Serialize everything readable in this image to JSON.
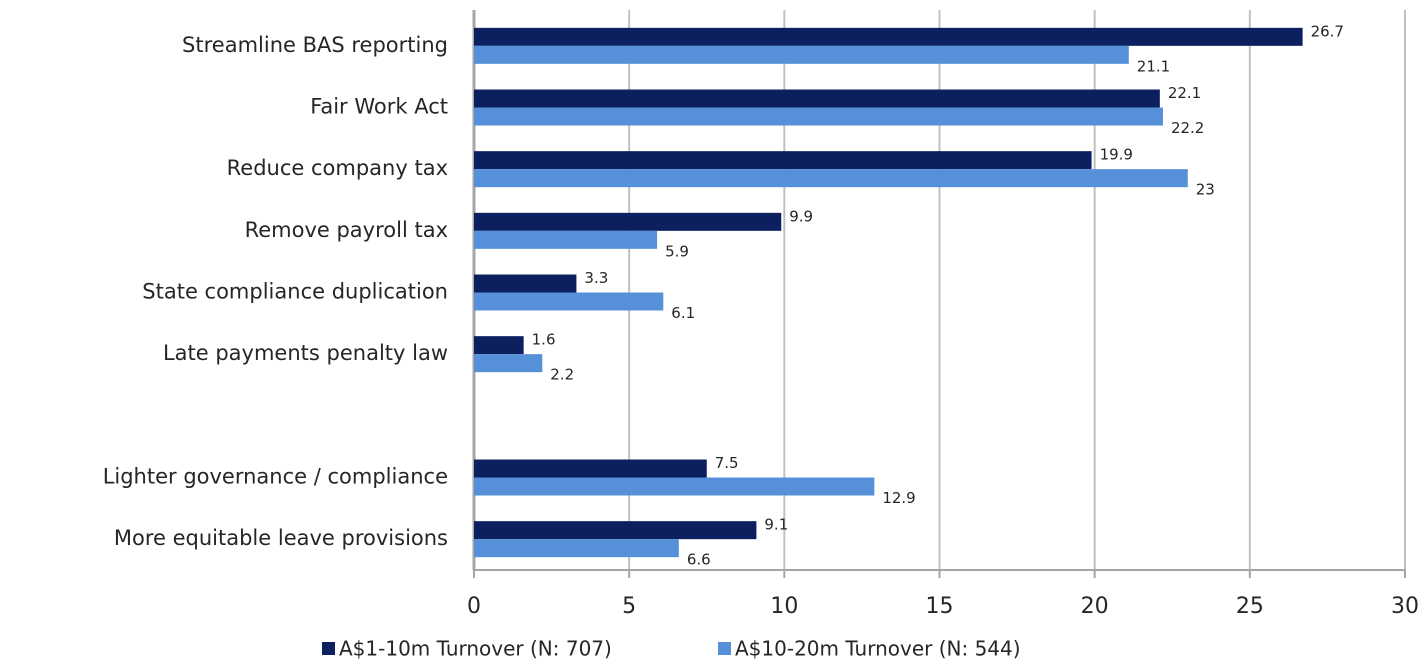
{
  "chart_data": {
    "type": "bar",
    "orientation": "horizontal",
    "categories": [
      "Streamline BAS reporting",
      "Fair Work Act",
      "Reduce company tax",
      "Remove payroll tax",
      "State compliance duplication",
      "Late payments penalty law",
      null,
      "Lighter governance / compliance",
      "More equitable leave provisions"
    ],
    "series": [
      {
        "name": "A$1-10m Turnover (N: 707)",
        "color": "#0c1f5e",
        "values": [
          26.7,
          22.1,
          19.9,
          9.9,
          3.3,
          1.6,
          null,
          7.5,
          9.1
        ]
      },
      {
        "name": "A$10-20m Turnover (N: 544)",
        "color": "#5590d9",
        "values": [
          21.1,
          22.2,
          23,
          5.9,
          6.1,
          2.2,
          null,
          12.9,
          6.6
        ]
      }
    ],
    "xlim": [
      0,
      30
    ],
    "xticks": [
      0,
      5,
      10,
      15,
      20,
      25,
      30
    ],
    "grid": true,
    "legend": "bottom"
  }
}
